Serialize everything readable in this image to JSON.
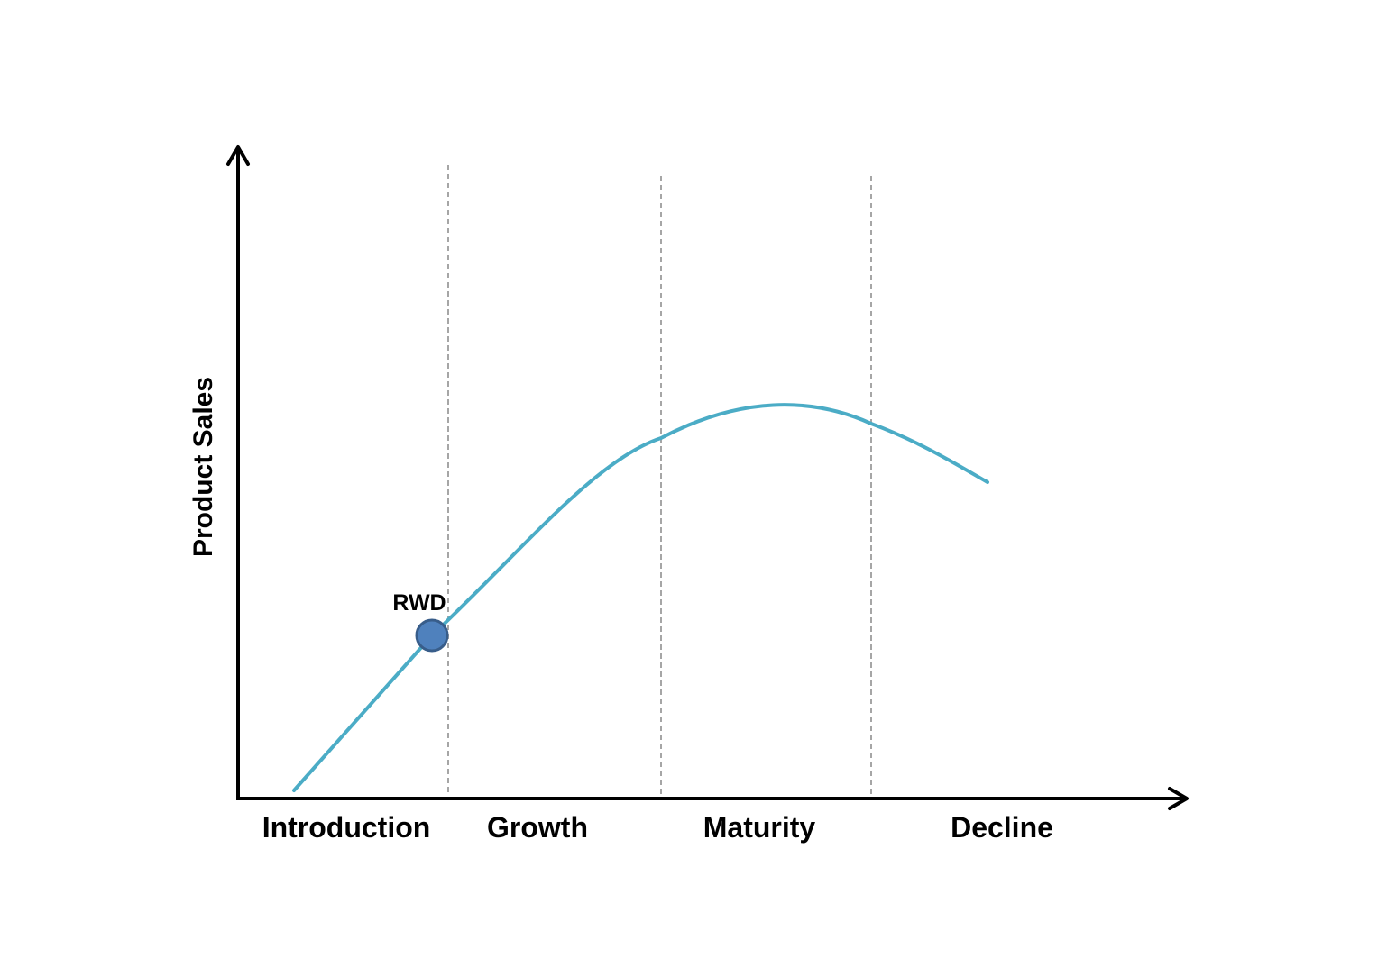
{
  "y_axis_label": "Product Sales",
  "stages": [
    {
      "label": "Introduction"
    },
    {
      "label": "Growth"
    },
    {
      "label": "Maturity"
    },
    {
      "label": "Decline"
    }
  ],
  "marker": {
    "label": "RWD"
  },
  "colors": {
    "curve": "#4bacc6",
    "axis": "#000000",
    "divider": "#a6a6a6",
    "marker_fill": "#4f81bd",
    "marker_stroke": "#385d8a"
  }
}
